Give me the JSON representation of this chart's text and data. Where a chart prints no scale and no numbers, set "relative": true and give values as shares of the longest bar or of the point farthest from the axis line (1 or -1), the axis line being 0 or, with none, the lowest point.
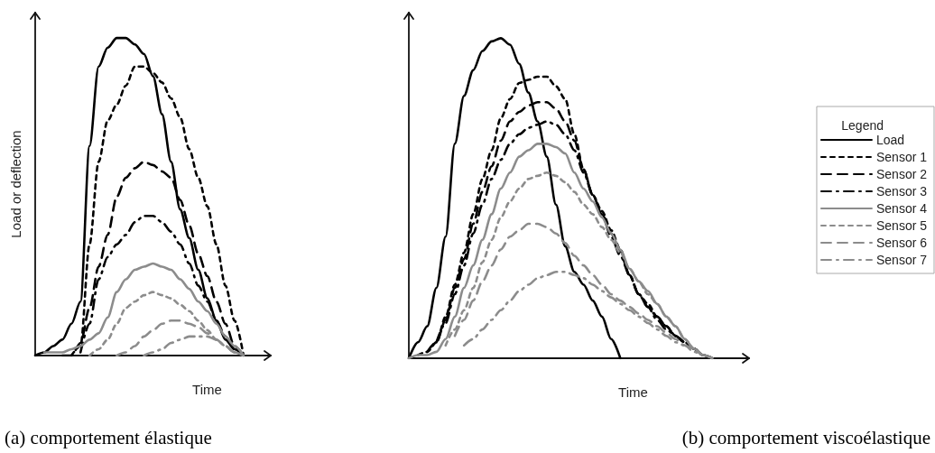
{
  "chart_data": [
    {
      "type": "line",
      "title": "(a) comportement élastique",
      "xlabel": "Time",
      "ylabel": "Load or deflection",
      "relative": true,
      "grid": false,
      "legend": false,
      "marker": "none",
      "categories": [
        null,
        null,
        null,
        null,
        null,
        null,
        null,
        null,
        null,
        null,
        null,
        null,
        null,
        null,
        null,
        null,
        null,
        null,
        null,
        null,
        null,
        null,
        null,
        null,
        null,
        null,
        null
      ],
      "series": [
        {
          "color": "#000000",
          "line_style": "solid",
          "values": [
            0,
            0.01,
            0.03,
            0.05,
            0.1,
            0.17,
            0.66,
            0.91,
            0.97,
            1.0,
            1.0,
            0.98,
            0.95,
            0.88,
            0.76,
            0.61,
            0.46,
            0.37,
            0.27,
            0.18,
            0.11,
            0.05,
            0.02,
            0,
            null,
            null,
            null
          ]
        },
        {
          "color": "#000000",
          "line_style": "dotted",
          "values": [
            null,
            null,
            null,
            null,
            0,
            0.03,
            0.35,
            0.61,
            0.74,
            0.79,
            0.85,
            0.91,
            0.91,
            0.89,
            0.86,
            0.81,
            0.75,
            0.65,
            0.56,
            0.47,
            0.35,
            0.22,
            0.11,
            0,
            null,
            null,
            null
          ]
        },
        {
          "color": "#000000",
          "line_style": "dashed",
          "values": [
            null,
            null,
            null,
            0,
            0,
            0.04,
            0.15,
            0.28,
            0.38,
            0.5,
            0.56,
            0.59,
            0.61,
            0.6,
            0.58,
            0.56,
            0.49,
            0.41,
            0.32,
            0.25,
            0.17,
            0.1,
            0.03,
            0,
            null,
            null,
            null
          ]
        },
        {
          "color": "#000000",
          "line_style": "dashdot",
          "values": [
            null,
            null,
            null,
            null,
            null,
            0.01,
            0.1,
            0.24,
            0.31,
            0.35,
            0.38,
            0.42,
            0.44,
            0.44,
            0.42,
            0.39,
            0.35,
            0.29,
            0.22,
            0.17,
            0.11,
            0.06,
            0.02,
            0,
            null,
            null,
            null
          ]
        },
        {
          "color": "#8c8c8c",
          "line_style": "solid",
          "values": [
            null,
            0.01,
            0.01,
            0.01,
            0.02,
            0.03,
            0.05,
            0.07,
            0.12,
            0.2,
            0.24,
            0.27,
            0.28,
            0.29,
            0.28,
            0.27,
            0.24,
            0.21,
            0.17,
            0.14,
            0.1,
            0.06,
            0.03,
            0,
            null,
            null,
            null
          ]
        },
        {
          "color": "#8c8c8c",
          "line_style": "dotted",
          "values": [
            null,
            null,
            null,
            null,
            null,
            null,
            0,
            0.02,
            0.05,
            0.1,
            0.15,
            0.17,
            0.19,
            0.2,
            0.19,
            0.18,
            0.16,
            0.14,
            0.11,
            0.08,
            0.05,
            0.03,
            0.01,
            0,
            null,
            null,
            null
          ]
        },
        {
          "color": "#8c8c8c",
          "line_style": "dashed",
          "values": [
            null,
            null,
            null,
            null,
            null,
            null,
            null,
            null,
            null,
            0,
            0.01,
            0.03,
            0.06,
            0.08,
            0.1,
            0.11,
            0.11,
            0.1,
            0.09,
            0.07,
            0.05,
            0.03,
            0.01,
            0,
            null,
            null,
            null
          ]
        },
        {
          "color": "#8c8c8c",
          "line_style": "dashdot",
          "values": [
            null,
            null,
            null,
            null,
            null,
            null,
            null,
            null,
            null,
            null,
            null,
            null,
            0,
            0.01,
            0.02,
            0.04,
            0.05,
            0.06,
            0.06,
            0.06,
            0.05,
            0.03,
            0.01,
            0,
            null,
            null,
            null
          ]
        }
      ]
    },
    {
      "type": "line",
      "title": "(b) comportement viscoélastique",
      "xlabel": "Time",
      "relative": true,
      "grid": false,
      "legend": "right",
      "legend_title": "Legend",
      "marker": "none",
      "categories": [
        null,
        null,
        null,
        null,
        null,
        null,
        null,
        null,
        null,
        null,
        null,
        null,
        null,
        null,
        null,
        null,
        null,
        null,
        null,
        null,
        null,
        null,
        null,
        null,
        null,
        null,
        null,
        null,
        null,
        null,
        null,
        null,
        null,
        null,
        null,
        null,
        null,
        null
      ],
      "series": [
        {
          "name": "Load",
          "color": "#000000",
          "line_style": "solid",
          "values": [
            0,
            0.05,
            0.1,
            0.22,
            0.38,
            0.67,
            0.82,
            0.9,
            0.96,
            0.99,
            1.0,
            0.98,
            0.92,
            0.83,
            0.74,
            0.63,
            0.48,
            0.35,
            0.27,
            0.23,
            0.18,
            0.13,
            0.06,
            0,
            null,
            null,
            null,
            null,
            null,
            null,
            null,
            null,
            null,
            null,
            null,
            null,
            null,
            null
          ]
        },
        {
          "name": "Sensor 1",
          "color": "#000000",
          "line_style": "dotted",
          "values": [
            null,
            0.01,
            0.02,
            0.05,
            0.13,
            0.23,
            0.33,
            0.45,
            0.56,
            0.65,
            0.75,
            0.81,
            0.86,
            0.87,
            0.88,
            0.88,
            0.85,
            0.81,
            0.7,
            0.59,
            0.51,
            0.46,
            0.4,
            0.34,
            0.26,
            0.2,
            0.17,
            0.13,
            0.1,
            0.07,
            0.05,
            0.03,
            0.01,
            0,
            null,
            null,
            null,
            null
          ]
        },
        {
          "name": "Sensor 2",
          "color": "#000000",
          "line_style": "dashed",
          "values": [
            null,
            null,
            0.02,
            0.05,
            0.12,
            0.22,
            0.31,
            0.42,
            0.52,
            0.6,
            0.68,
            0.74,
            0.77,
            0.79,
            0.8,
            0.8,
            0.78,
            0.74,
            0.68,
            0.59,
            0.51,
            0.45,
            0.39,
            0.33,
            0.26,
            0.2,
            0.16,
            0.13,
            0.1,
            0.07,
            0.05,
            0.03,
            0.01,
            0,
            null,
            null,
            null,
            null
          ]
        },
        {
          "name": "Sensor 3",
          "color": "#000000",
          "line_style": "dashdot",
          "values": [
            null,
            null,
            null,
            0.05,
            0.11,
            0.2,
            0.29,
            0.39,
            0.48,
            0.56,
            0.62,
            0.67,
            0.7,
            0.72,
            0.73,
            0.74,
            0.73,
            0.7,
            0.65,
            0.58,
            0.51,
            0.45,
            0.38,
            0.32,
            0.26,
            0.2,
            0.16,
            0.12,
            0.09,
            0.07,
            0.05,
            0.03,
            0.01,
            0,
            null,
            null,
            null,
            null
          ]
        },
        {
          "name": "Sensor 4",
          "color": "#8c8c8c",
          "line_style": "solid",
          "values": [
            0,
            0.01,
            0.01,
            0.02,
            0.06,
            0.13,
            0.22,
            0.29,
            0.37,
            0.45,
            0.53,
            0.58,
            0.63,
            0.65,
            0.67,
            0.67,
            0.66,
            0.64,
            0.58,
            0.53,
            0.49,
            0.44,
            0.39,
            0.34,
            0.28,
            0.24,
            0.21,
            0.17,
            0.13,
            0.1,
            0.06,
            0.03,
            0.01,
            0,
            null,
            null,
            null,
            null
          ]
        },
        {
          "name": "Sensor 5",
          "color": "#8c8c8c",
          "line_style": "dotted",
          "values": [
            null,
            null,
            null,
            null,
            0.04,
            0.09,
            0.15,
            0.22,
            0.3,
            0.37,
            0.44,
            0.49,
            0.53,
            0.56,
            0.57,
            0.58,
            0.57,
            0.55,
            0.52,
            0.48,
            0.45,
            0.41,
            0.37,
            0.33,
            0.28,
            0.24,
            0.2,
            0.17,
            0.13,
            0.1,
            0.06,
            0.03,
            0.01,
            0,
            null,
            null,
            null,
            null
          ]
        },
        {
          "name": "Sensor 6",
          "color": "#8c8c8c",
          "line_style": "dashed",
          "values": [
            null,
            null,
            null,
            null,
            null,
            0.07,
            0.12,
            0.18,
            0.24,
            0.29,
            0.34,
            0.38,
            0.4,
            0.42,
            0.42,
            0.41,
            0.39,
            0.36,
            0.32,
            0.29,
            0.26,
            0.23,
            0.2,
            0.18,
            0.16,
            0.14,
            0.12,
            0.1,
            0.08,
            0.06,
            0.04,
            0.03,
            0.01,
            0,
            null,
            null,
            null,
            null
          ]
        },
        {
          "name": "Sensor 7",
          "color": "#8c8c8c",
          "line_style": "dashdot",
          "values": [
            null,
            null,
            null,
            null,
            null,
            null,
            0.04,
            0.06,
            0.09,
            0.12,
            0.15,
            0.18,
            0.21,
            0.23,
            0.25,
            0.26,
            0.27,
            0.27,
            0.26,
            0.25,
            0.23,
            0.21,
            0.19,
            0.17,
            0.15,
            0.13,
            0.11,
            0.09,
            0.07,
            0.05,
            0.04,
            0.02,
            0.01,
            0,
            null,
            null,
            null,
            null
          ]
        }
      ]
    }
  ]
}
